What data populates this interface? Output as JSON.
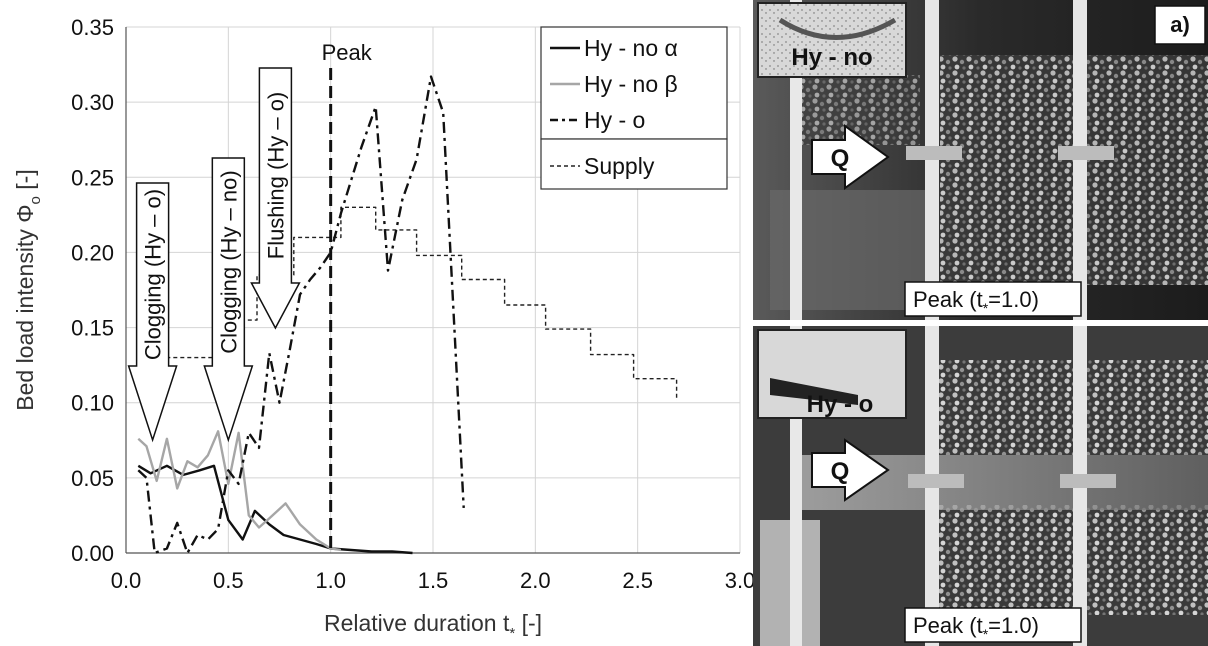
{
  "chart_data": {
    "type": "line",
    "xlabel": "Relative duration t",
    "xlabel_sub": "*",
    "xlabel_unit": " [-]",
    "ylabel": "Bed load intensity Φ",
    "ylabel_sub": "o",
    "ylabel_unit": " [-]",
    "xlim": [
      0,
      3
    ],
    "ylim": [
      0,
      0.35
    ],
    "xticks": [
      "0.0",
      "0.5",
      "1.0",
      "1.5",
      "2.0",
      "2.5",
      "3.0"
    ],
    "yticks": [
      "0.00",
      "0.05",
      "0.10",
      "0.15",
      "0.20",
      "0.25",
      "0.30",
      "0.35"
    ],
    "grid": true,
    "legend_position": "top-right",
    "series": [
      {
        "name": "Hy - no α",
        "style": "solid",
        "color": "#111111",
        "x": [
          0.06,
          0.12,
          0.2,
          0.28,
          0.36,
          0.43,
          0.5,
          0.57,
          0.63,
          0.7,
          0.77,
          0.85,
          0.93,
          1.0,
          1.1,
          1.2,
          1.3,
          1.4
        ],
        "y": [
          0.058,
          0.053,
          0.058,
          0.052,
          0.055,
          0.058,
          0.022,
          0.009,
          0.028,
          0.019,
          0.012,
          0.009,
          0.006,
          0.003,
          0.002,
          0.001,
          0.001,
          0.0
        ]
      },
      {
        "name": "Hy - no  β",
        "style": "solid",
        "color": "#a6a6a6",
        "x": [
          0.06,
          0.1,
          0.15,
          0.2,
          0.25,
          0.3,
          0.35,
          0.4,
          0.45,
          0.5,
          0.55,
          0.6,
          0.65,
          0.7,
          0.78,
          0.85,
          0.93,
          1.0,
          1.05
        ],
        "y": [
          0.076,
          0.071,
          0.048,
          0.076,
          0.043,
          0.061,
          0.057,
          0.065,
          0.081,
          0.046,
          0.08,
          0.025,
          0.017,
          0.023,
          0.033,
          0.019,
          0.009,
          0.003,
          0.002
        ]
      },
      {
        "name": "Hy - o",
        "style": "dashdot",
        "color": "#111111",
        "x": [
          0.06,
          0.1,
          0.14,
          0.2,
          0.25,
          0.3,
          0.35,
          0.4,
          0.45,
          0.5,
          0.55,
          0.6,
          0.65,
          0.7,
          0.75,
          0.8,
          0.85,
          0.9,
          0.95,
          1.0,
          1.05,
          1.15,
          1.22,
          1.28,
          1.35,
          1.42,
          1.49,
          1.55,
          1.65
        ],
        "y": [
          0.055,
          0.05,
          0.0,
          0.003,
          0.02,
          0.0,
          0.012,
          0.009,
          0.016,
          0.055,
          0.046,
          0.08,
          0.07,
          0.133,
          0.1,
          0.135,
          0.172,
          0.182,
          0.19,
          0.2,
          0.226,
          0.27,
          0.297,
          0.188,
          0.235,
          0.262,
          0.317,
          0.293,
          0.03
        ]
      },
      {
        "name": "Supply",
        "style": "dashed",
        "color": "#222222",
        "x": [
          0.06,
          0.22,
          0.22,
          0.47,
          0.47,
          0.64,
          0.64,
          0.82,
          0.82,
          1.05,
          1.05,
          1.22,
          1.22,
          1.42,
          1.42,
          1.64,
          1.64,
          1.85,
          1.85,
          2.05,
          2.05,
          2.27,
          2.27,
          2.48,
          2.48,
          2.69,
          2.69
        ],
        "y": [
          0.13,
          0.13,
          0.13,
          0.13,
          0.155,
          0.155,
          0.185,
          0.185,
          0.21,
          0.21,
          0.23,
          0.23,
          0.215,
          0.215,
          0.198,
          0.198,
          0.182,
          0.182,
          0.165,
          0.165,
          0.149,
          0.149,
          0.132,
          0.132,
          0.116,
          0.116,
          0.102
        ]
      }
    ],
    "annotations": [
      {
        "text": "Peak",
        "x": 1.0
      },
      {
        "text": "Clogging (Hy – o)",
        "x": 0.13
      },
      {
        "text": "Clogging (Hy – no)",
        "x": 0.5
      },
      {
        "text": "Flushing (Hy – o)",
        "x": 0.73
      }
    ]
  },
  "photos": {
    "panel_label": "a)",
    "top": {
      "inset_label": "Hy - no",
      "arrow_label": "Q",
      "caption": "Peak (t",
      "caption_sub": "*",
      "caption_end": "=1.0)"
    },
    "bottom": {
      "inset_label": "Hy - o",
      "arrow_label": "Q",
      "caption": "Peak (t",
      "caption_sub": "*",
      "caption_end": "=1.0)"
    }
  }
}
